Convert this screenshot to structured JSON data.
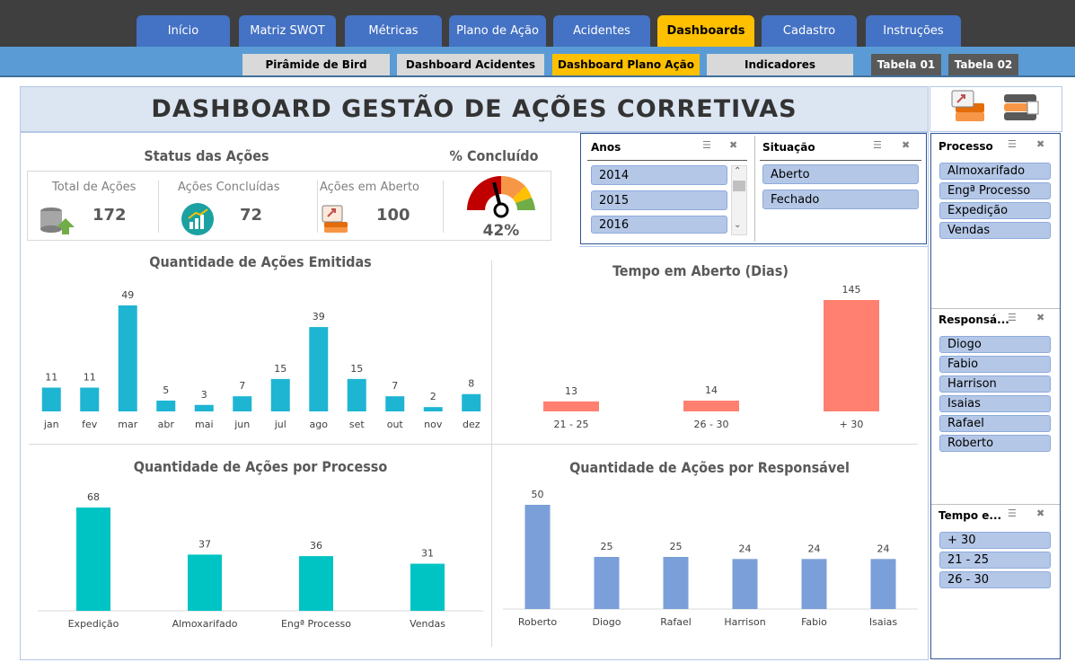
{
  "nav": {
    "tabs": [
      {
        "label": "Início"
      },
      {
        "label": "Matriz SWOT"
      },
      {
        "label": "Métricas"
      },
      {
        "label": "Plano de Ação"
      },
      {
        "label": "Acidentes"
      },
      {
        "label": "Dashboards"
      },
      {
        "label": "Cadastro"
      },
      {
        "label": "Instruções"
      }
    ],
    "subtabs": [
      {
        "label": "Pirâmide de Bird"
      },
      {
        "label": "Dashboard Acidentes"
      },
      {
        "label": "Dashboard Plano Ação"
      },
      {
        "label": "Indicadores"
      },
      {
        "label": "Tabela 01"
      },
      {
        "label": "Tabela 02"
      }
    ]
  },
  "title": "DASHBOARD GESTÃO DE AÇÕES CORRETIVAS",
  "status": {
    "title": "Status das Ações",
    "total_label": "Total de Ações",
    "total_value": "172",
    "done_label": "Ações Concluídas",
    "done_value": "72",
    "open_label": "Ações em Aberto",
    "open_value": "100"
  },
  "gauge": {
    "title": "% Concluído",
    "value": "42%",
    "fraction": 0.42
  },
  "slicers": {
    "anos": {
      "title": "Anos",
      "items": [
        "2014",
        "2015",
        "2016"
      ]
    },
    "situacao": {
      "title": "Situação",
      "items": [
        "Aberto",
        "Fechado"
      ]
    },
    "processo": {
      "title": "Processo",
      "items": [
        "Almoxarifado",
        "Engª Processo",
        "Expedição",
        "Vendas"
      ]
    },
    "responsavel": {
      "title": "Responsá...",
      "items": [
        "Diogo",
        "Fabio",
        "Harrison",
        "Isaias",
        "Rafael",
        "Roberto"
      ]
    },
    "tempo": {
      "title": "Tempo e...",
      "items": [
        "+ 30",
        "21 - 25",
        "26 - 30"
      ]
    }
  },
  "colors": {
    "monthly": "#1eb5d3",
    "tempo": "#ff8070",
    "processo": "#00c4c4",
    "responsavel": "#7b9fd8"
  },
  "chart_data": [
    {
      "type": "bar",
      "title": "Quantidade de Ações Emitidas",
      "categories": [
        "jan",
        "fev",
        "mar",
        "abr",
        "mai",
        "jun",
        "jul",
        "ago",
        "set",
        "out",
        "nov",
        "dez"
      ],
      "values": [
        11,
        11,
        49,
        5,
        3,
        7,
        15,
        39,
        15,
        7,
        2,
        8
      ]
    },
    {
      "type": "bar",
      "title": "Tempo em Aberto (Dias)",
      "categories": [
        "21 - 25",
        "26 - 30",
        "+ 30"
      ],
      "values": [
        13,
        14,
        145
      ]
    },
    {
      "type": "bar",
      "title": "Quantidade de Ações por Processo",
      "categories": [
        "Expedição",
        "Almoxarifado",
        "Engª Processo",
        "Vendas"
      ],
      "values": [
        68,
        37,
        36,
        31
      ]
    },
    {
      "type": "bar",
      "title": "Quantidade de Ações por Responsável",
      "categories": [
        "Roberto",
        "Diogo",
        "Rafael",
        "Harrison",
        "Fabio",
        "Isaias"
      ],
      "values": [
        50,
        25,
        25,
        24,
        24,
        24
      ]
    }
  ]
}
